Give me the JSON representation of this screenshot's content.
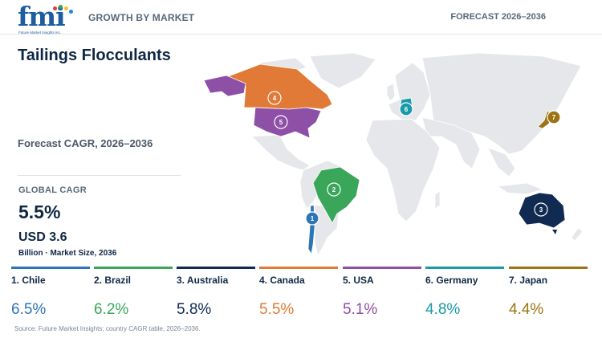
{
  "header": {
    "logo_text": "fmi",
    "logo_sub": "Future Market Insights inc.",
    "left_label": "GROWTH BY MARKET",
    "right_label": "FORECAST 2026–2036"
  },
  "title": "Tailings Flocculants",
  "forecast_label": "Forecast CAGR, 2026–2036",
  "global": {
    "label": "GLOBAL CAGR",
    "value": "5.5%",
    "market_value": "USD 3.6",
    "market_sub": "Billion · Market Size, 2036"
  },
  "countries": [
    {
      "rank": "1",
      "name": "1. Chile",
      "cagr": "6.5%",
      "color": "#2e75b6"
    },
    {
      "rank": "2",
      "name": "2. Brazil",
      "cagr": "6.2%",
      "color": "#3aa65a"
    },
    {
      "rank": "3",
      "name": "3. Australia",
      "cagr": "5.8%",
      "color": "#102a52"
    },
    {
      "rank": "4",
      "name": "4. Canada",
      "cagr": "5.5%",
      "color": "#e07a36"
    },
    {
      "rank": "5",
      "name": "5. USA",
      "cagr": "5.1%",
      "color": "#8e4fa6"
    },
    {
      "rank": "6",
      "name": "6. Germany",
      "cagr": "4.8%",
      "color": "#1a9aa8"
    },
    {
      "rank": "7",
      "name": "7. Japan",
      "cagr": "4.4%",
      "color": "#9c7414"
    }
  ],
  "source": "Source: Future Market Insights; country CAGR table, 2026–2036."
}
